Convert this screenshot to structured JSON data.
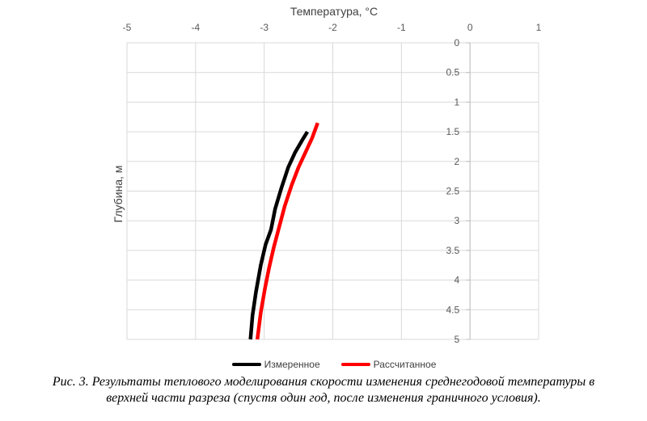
{
  "chart_data": {
    "type": "line",
    "xlabel": "Температура, °C",
    "ylabel": "Глубина, м",
    "xlim": [
      -5,
      1
    ],
    "ylim": [
      0,
      5
    ],
    "y_inverted": true,
    "x_axis_position": "top",
    "x_ticks": [
      "-5",
      "-4",
      "-3",
      "-2",
      "-1",
      "0",
      "1"
    ],
    "y_ticks": [
      "0",
      "0.5",
      "1",
      "1.5",
      "2",
      "2.5",
      "3",
      "3.5",
      "4",
      "4.5",
      "5"
    ],
    "grid": true,
    "legend_position": "bottom",
    "series": [
      {
        "name": "Измеренное",
        "color": "#000000",
        "points": [
          {
            "x": -2.37,
            "y": 1.5
          },
          {
            "x": -2.45,
            "y": 1.65
          },
          {
            "x": -2.55,
            "y": 1.85
          },
          {
            "x": -2.65,
            "y": 2.1
          },
          {
            "x": -2.75,
            "y": 2.45
          },
          {
            "x": -2.84,
            "y": 2.8
          },
          {
            "x": -2.9,
            "y": 3.15
          },
          {
            "x": -2.98,
            "y": 3.4
          },
          {
            "x": -3.05,
            "y": 3.75
          },
          {
            "x": -3.12,
            "y": 4.2
          },
          {
            "x": -3.17,
            "y": 4.6
          },
          {
            "x": -3.2,
            "y": 5.0
          }
        ]
      },
      {
        "name": "Рассчитанное",
        "color": "#ff0000",
        "points": [
          {
            "x": -2.22,
            "y": 1.35
          },
          {
            "x": -2.3,
            "y": 1.6
          },
          {
            "x": -2.4,
            "y": 1.85
          },
          {
            "x": -2.5,
            "y": 2.1
          },
          {
            "x": -2.6,
            "y": 2.4
          },
          {
            "x": -2.7,
            "y": 2.75
          },
          {
            "x": -2.78,
            "y": 3.1
          },
          {
            "x": -2.86,
            "y": 3.45
          },
          {
            "x": -2.93,
            "y": 3.8
          },
          {
            "x": -2.99,
            "y": 4.15
          },
          {
            "x": -3.05,
            "y": 4.55
          },
          {
            "x": -3.1,
            "y": 5.0
          }
        ]
      }
    ]
  },
  "caption": {
    "line1": "Рис. 3. Результаты теплового моделирования скорости изменения среднегодовой температуры в",
    "line2": "верхней части разреза (спустя один год, после изменения граничного условия)."
  }
}
